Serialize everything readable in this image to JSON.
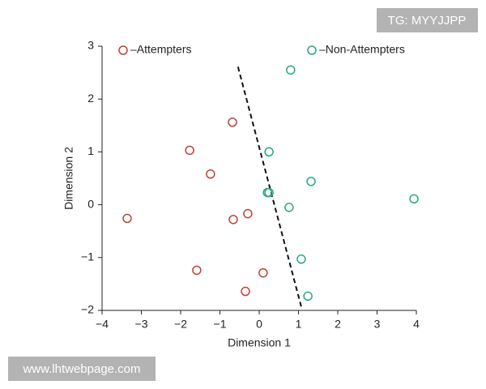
{
  "chart_data": {
    "type": "scatter",
    "xlabel": "Dimension 1",
    "ylabel": "Dimension 2",
    "xlim": [
      -4,
      4
    ],
    "ylim": [
      -2,
      3
    ],
    "xticks": [
      {
        "value": -4,
        "label": "−4"
      },
      {
        "value": -3,
        "label": "−3"
      },
      {
        "value": -2,
        "label": "−2"
      },
      {
        "value": -1,
        "label": "−1"
      },
      0,
      1,
      2,
      3,
      4
    ],
    "yticks": [
      {
        "value": -2,
        "label": "−2"
      },
      {
        "value": -1,
        "label": "−1"
      },
      0,
      1,
      2,
      3
    ],
    "series": [
      {
        "name": "–Attempters",
        "color": "#c0403a",
        "x": [
          -0.68,
          -1.77,
          -1.24,
          -3.36,
          -0.66,
          -0.29,
          -1.59,
          0.1,
          -0.35
        ],
        "values": [
          1.56,
          1.03,
          0.58,
          -0.26,
          -0.28,
          -0.17,
          -1.24,
          -1.29,
          -1.64
        ]
      },
      {
        "name": "–Non-Attempters",
        "color": "#2aa87a",
        "x": [
          0.8,
          0.25,
          0.21,
          0.25,
          1.32,
          0.76,
          3.94,
          1.07,
          1.24
        ],
        "values": [
          2.55,
          1.0,
          0.23,
          0.23,
          0.44,
          -0.05,
          0.11,
          -1.03,
          -1.73
        ]
      }
    ],
    "boundary": {
      "x": [
        -0.54,
        1.07
      ],
      "values": [
        2.61,
        -1.93
      ]
    }
  },
  "watermarks": [
    "TG: MYYJJPP",
    "www.lhtwebpage.com"
  ]
}
